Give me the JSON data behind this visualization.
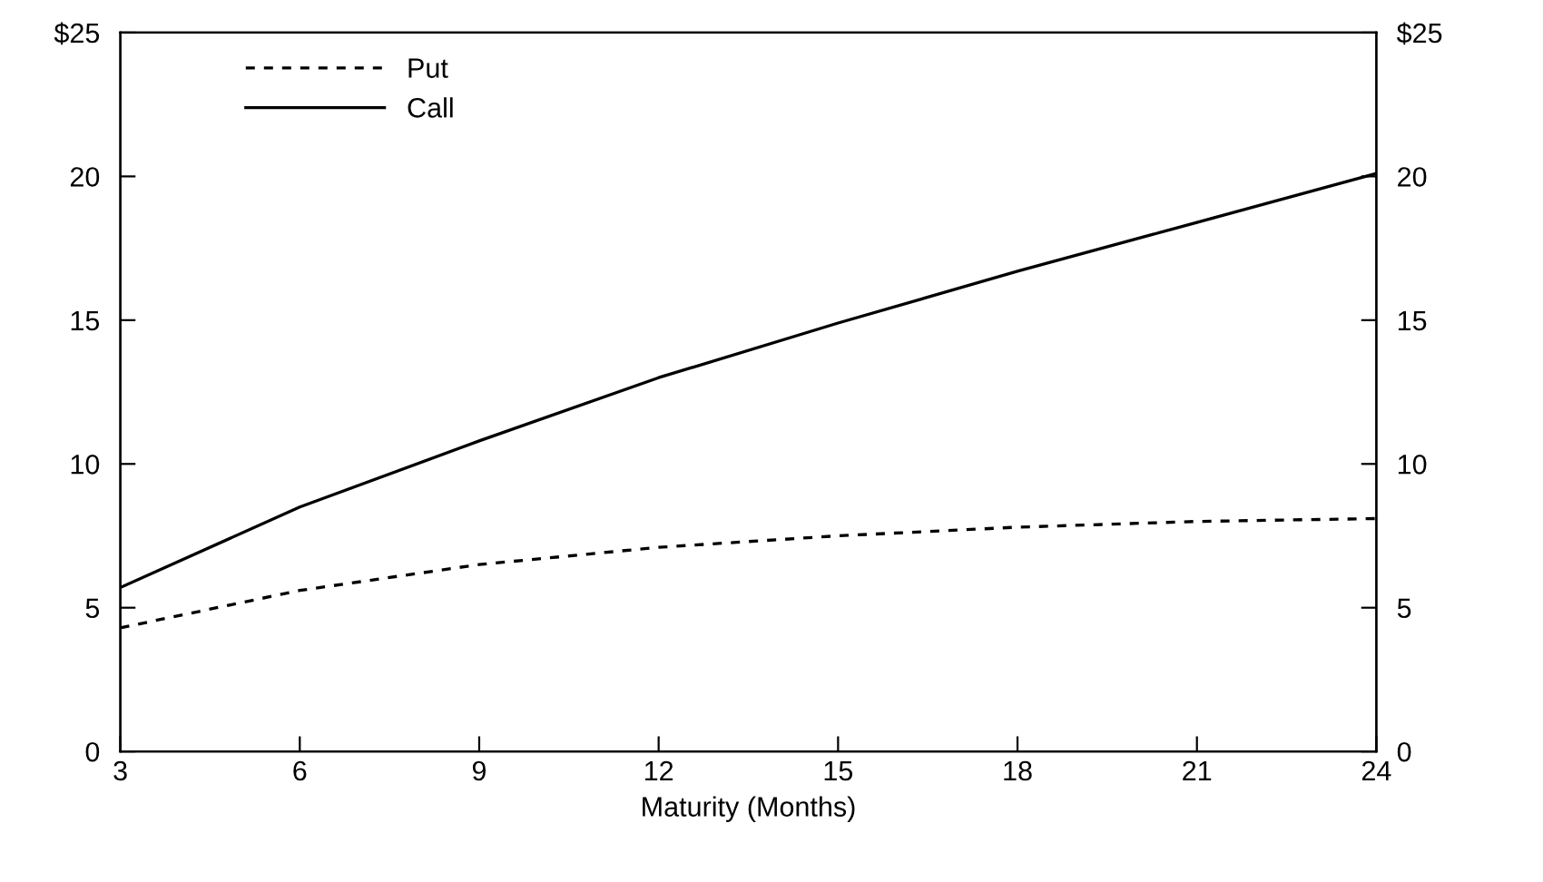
{
  "chart_data": {
    "type": "line",
    "xlabel": "Maturity (Months)",
    "x": [
      3,
      6,
      9,
      12,
      15,
      18,
      21,
      24
    ],
    "series": [
      {
        "name": "Put",
        "color": "#000000",
        "line_style": "dashed",
        "values": [
          4.3,
          5.6,
          6.5,
          7.1,
          7.5,
          7.8,
          8.0,
          8.1
        ]
      },
      {
        "name": "Call",
        "color": "#000000",
        "line_style": "solid",
        "values": [
          5.7,
          8.5,
          10.8,
          13.0,
          14.9,
          16.7,
          18.4,
          20.1
        ]
      }
    ],
    "xlim": [
      3,
      24
    ],
    "xticks": [
      3,
      6,
      9,
      12,
      15,
      18,
      21,
      24
    ],
    "ylim": [
      0,
      25
    ],
    "yticks": [
      0,
      5,
      10,
      15,
      20,
      {
        "value": 25,
        "label": "$25"
      }
    ],
    "y2lim": [
      0,
      25
    ],
    "y2ticks": [
      0,
      5,
      10,
      15,
      20,
      {
        "value": 25,
        "label": "$25"
      }
    ],
    "legend": "top left",
    "grid": false,
    "marker": "none"
  }
}
